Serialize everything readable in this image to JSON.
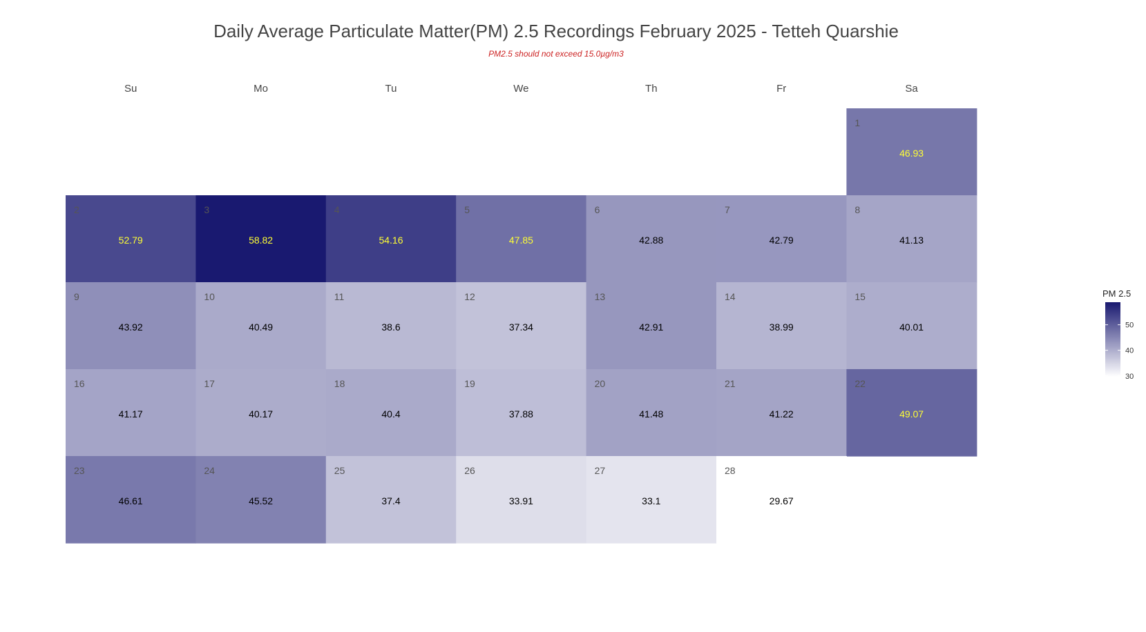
{
  "chart_data": {
    "type": "heatmap",
    "title": "Daily Average Particulate Matter(PM) 2.5 Recordings February 2025 -  Tetteh Quarshie",
    "subtitle": "PM2.5 should not exceed 15.0µg/m3",
    "weekdays": [
      "Su",
      "Mo",
      "Tu",
      "We",
      "Th",
      "Fr",
      "Sa"
    ],
    "first_weekday_index": 6,
    "days": [
      {
        "day": 1,
        "value": 46.93
      },
      {
        "day": 2,
        "value": 52.79
      },
      {
        "day": 3,
        "value": 58.82
      },
      {
        "day": 4,
        "value": 54.16
      },
      {
        "day": 5,
        "value": 47.85
      },
      {
        "day": 6,
        "value": 42.88
      },
      {
        "day": 7,
        "value": 42.79
      },
      {
        "day": 8,
        "value": 41.13
      },
      {
        "day": 9,
        "value": 43.92
      },
      {
        "day": 10,
        "value": 40.49
      },
      {
        "day": 11,
        "value": 38.6
      },
      {
        "day": 12,
        "value": 37.34
      },
      {
        "day": 13,
        "value": 42.91
      },
      {
        "day": 14,
        "value": 38.99
      },
      {
        "day": 15,
        "value": 40.01
      },
      {
        "day": 16,
        "value": 41.17
      },
      {
        "day": 17,
        "value": 40.17
      },
      {
        "day": 18,
        "value": 40.4
      },
      {
        "day": 19,
        "value": 37.88
      },
      {
        "day": 20,
        "value": 41.48
      },
      {
        "day": 21,
        "value": 41.22
      },
      {
        "day": 22,
        "value": 49.07
      },
      {
        "day": 23,
        "value": 46.61
      },
      {
        "day": 24,
        "value": 45.52
      },
      {
        "day": 25,
        "value": 37.4
      },
      {
        "day": 26,
        "value": 33.91
      },
      {
        "day": 27,
        "value": 33.1
      },
      {
        "day": 28,
        "value": 29.67
      }
    ],
    "legend": {
      "title": "PM 2.5",
      "ticks": [
        50,
        40,
        30
      ],
      "range": [
        29.67,
        58.82
      ],
      "placement": "right"
    },
    "colors": {
      "low": "#ffffff",
      "high": "#191970",
      "label_light": "#ffff33",
      "label_dark": "#000000",
      "day_number": "#555555"
    },
    "label_threshold": 46.8
  }
}
